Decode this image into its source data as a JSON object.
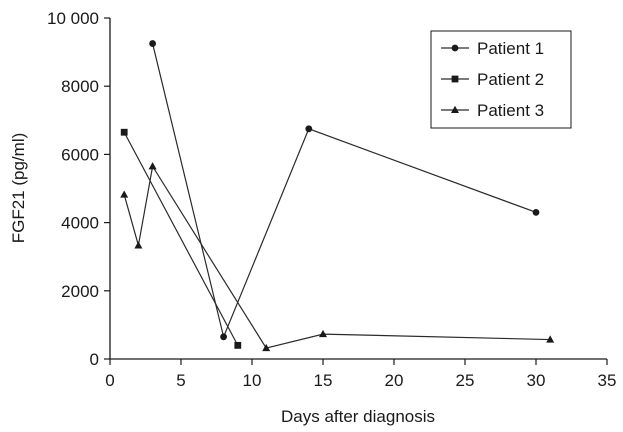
{
  "chart_data": {
    "type": "line",
    "title": "",
    "xlabel": "Days after diagnosis",
    "ylabel": "FGF21 (pg/ml)",
    "xlim": [
      0,
      35
    ],
    "ylim": [
      0,
      10000
    ],
    "xticks": [
      0,
      5,
      10,
      15,
      20,
      25,
      30,
      35
    ],
    "yticks": [
      0,
      2000,
      4000,
      6000,
      8000,
      10000
    ],
    "xtick_labels": [
      "0",
      "5",
      "10",
      "15",
      "20",
      "25",
      "30",
      "35"
    ],
    "ytick_labels": [
      "0",
      "2000",
      "4000",
      "6000",
      "8000",
      "10 000"
    ],
    "grid": false,
    "legend_position": "top-right",
    "series": [
      {
        "name": "Patient 1",
        "marker": "circle",
        "points": [
          [
            3,
            9250
          ],
          [
            8,
            650
          ],
          [
            14,
            6750
          ],
          [
            30,
            4300
          ]
        ]
      },
      {
        "name": "Patient 2",
        "marker": "square",
        "points": [
          [
            1,
            6650
          ],
          [
            9,
            400
          ]
        ]
      },
      {
        "name": "Patient 3",
        "marker": "triangle",
        "points": [
          [
            1,
            4820
          ],
          [
            2,
            3330
          ],
          [
            3,
            5650
          ],
          [
            11,
            320
          ],
          [
            15,
            730
          ],
          [
            31,
            570
          ]
        ]
      }
    ]
  }
}
